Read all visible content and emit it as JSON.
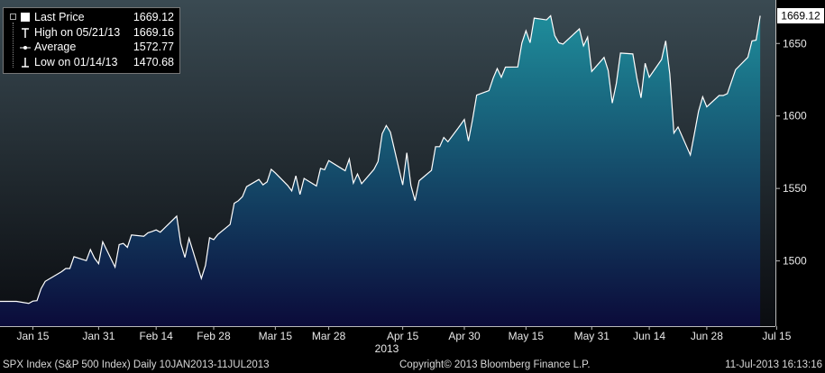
{
  "legend": {
    "items": [
      {
        "label": "Last Price",
        "value": "1669.12",
        "icon": "filled-square-icon"
      },
      {
        "label": "High on 05/21/13",
        "value": "1669.16",
        "icon": "high-marker-icon"
      },
      {
        "label": "Average",
        "value": "1572.77",
        "icon": "average-line-icon"
      },
      {
        "label": "Low on 01/14/13",
        "value": "1470.68",
        "icon": "low-marker-icon"
      }
    ]
  },
  "footer": {
    "security": "SPX Index (S&P 500 Index)  Daily 10JAN2013-11JUL2013",
    "copyright": "Copyright© 2013 Bloomberg Finance L.P.",
    "timestamp": "11-Jul-2013 16:13:16"
  },
  "chart_data": {
    "type": "area",
    "ylim": [
      1455,
      1680
    ],
    "y_ticks": [
      "1500",
      "1550",
      "1600",
      "1650"
    ],
    "y_tick_values": [
      1500,
      1550,
      1600,
      1650
    ],
    "x_tick_labels": [
      "Jan 15",
      "Jan 31",
      "Feb 14",
      "Feb 28",
      "Mar 15",
      "Mar 28",
      "Apr 15",
      "Apr 30",
      "May 15",
      "May 31",
      "Jun 14",
      "Jun 28",
      "Jul 15"
    ],
    "x_tick_dates": [
      "2013-01-15",
      "2013-01-31",
      "2013-02-14",
      "2013-02-28",
      "2013-03-15",
      "2013-03-28",
      "2013-04-15",
      "2013-04-30",
      "2013-05-15",
      "2013-05-31",
      "2013-06-14",
      "2013-06-28",
      "2013-07-15"
    ],
    "year_label": "2013",
    "last_price_label": "1669.12",
    "last_price": 1669.12,
    "colors": {
      "fill_top": "#1e8a99",
      "fill_bottom": "#0b0b3a",
      "line": "#ffffff",
      "plot_bg_top": "#3a4a52",
      "plot_bg_bottom": "#0a0c10"
    },
    "series": [
      {
        "dates": [
          "2013-01-10",
          "2013-01-11",
          "2013-01-14",
          "2013-01-15",
          "2013-01-16",
          "2013-01-17",
          "2013-01-18",
          "2013-01-22",
          "2013-01-23",
          "2013-01-24",
          "2013-01-25",
          "2013-01-28",
          "2013-01-29",
          "2013-01-30",
          "2013-01-31",
          "2013-02-01",
          "2013-02-04",
          "2013-02-05",
          "2013-02-06",
          "2013-02-07",
          "2013-02-08",
          "2013-02-11",
          "2013-02-12",
          "2013-02-13",
          "2013-02-14",
          "2013-02-15",
          "2013-02-19",
          "2013-02-20",
          "2013-02-21",
          "2013-02-22",
          "2013-02-25",
          "2013-02-26",
          "2013-02-27",
          "2013-02-28",
          "2013-03-01",
          "2013-03-04",
          "2013-03-05",
          "2013-03-06",
          "2013-03-07",
          "2013-03-08",
          "2013-03-11",
          "2013-03-12",
          "2013-03-13",
          "2013-03-14",
          "2013-03-15",
          "2013-03-18",
          "2013-03-19",
          "2013-03-20",
          "2013-03-21",
          "2013-03-22",
          "2013-03-25",
          "2013-03-26",
          "2013-03-27",
          "2013-03-28",
          "2013-04-01",
          "2013-04-02",
          "2013-04-03",
          "2013-04-04",
          "2013-04-05",
          "2013-04-08",
          "2013-04-09",
          "2013-04-10",
          "2013-04-11",
          "2013-04-12",
          "2013-04-15",
          "2013-04-16",
          "2013-04-17",
          "2013-04-18",
          "2013-04-19",
          "2013-04-22",
          "2013-04-23",
          "2013-04-24",
          "2013-04-25",
          "2013-04-26",
          "2013-04-29",
          "2013-04-30",
          "2013-05-01",
          "2013-05-02",
          "2013-05-03",
          "2013-05-06",
          "2013-05-07",
          "2013-05-08",
          "2013-05-09",
          "2013-05-10",
          "2013-05-13",
          "2013-05-14",
          "2013-05-15",
          "2013-05-16",
          "2013-05-17",
          "2013-05-20",
          "2013-05-21",
          "2013-05-22",
          "2013-05-23",
          "2013-05-24",
          "2013-05-28",
          "2013-05-29",
          "2013-05-30",
          "2013-05-31",
          "2013-06-03",
          "2013-06-04",
          "2013-06-05",
          "2013-06-06",
          "2013-06-07",
          "2013-06-10",
          "2013-06-11",
          "2013-06-12",
          "2013-06-13",
          "2013-06-14",
          "2013-06-17",
          "2013-06-18",
          "2013-06-19",
          "2013-06-20",
          "2013-06-21",
          "2013-06-24",
          "2013-06-25",
          "2013-06-26",
          "2013-06-27",
          "2013-06-28",
          "2013-07-01",
          "2013-07-02",
          "2013-07-03",
          "2013-07-05",
          "2013-07-08",
          "2013-07-09",
          "2013-07-10",
          "2013-07-11"
        ],
        "values": [
          1472.1,
          1472.1,
          1470.7,
          1472.3,
          1472.6,
          1480.9,
          1485.9,
          1492.6,
          1494.8,
          1494.8,
          1502.9,
          1500.2,
          1507.8,
          1501.9,
          1498.1,
          1513.2,
          1495.7,
          1511.3,
          1512.1,
          1509.4,
          1517.9,
          1517.0,
          1519.4,
          1520.3,
          1521.4,
          1519.8,
          1530.9,
          1511.9,
          1502.4,
          1515.6,
          1487.9,
          1496.9,
          1515.99,
          1514.7,
          1518.2,
          1525.2,
          1539.8,
          1541.5,
          1544.3,
          1551.2,
          1556.2,
          1552.5,
          1554.5,
          1563.2,
          1560.7,
          1552.1,
          1548.3,
          1558.7,
          1545.8,
          1556.9,
          1551.7,
          1563.8,
          1562.9,
          1569.2,
          1562.2,
          1570.3,
          1553.7,
          1559.98,
          1553.3,
          1563.1,
          1568.6,
          1587.7,
          1593.4,
          1588.9,
          1552.4,
          1574.6,
          1552.0,
          1541.6,
          1555.3,
          1562.5,
          1578.8,
          1578.8,
          1585.2,
          1582.2,
          1593.6,
          1597.6,
          1582.7,
          1597.6,
          1614.4,
          1617.5,
          1625.96,
          1632.7,
          1626.7,
          1633.7,
          1633.8,
          1650.3,
          1658.8,
          1650.5,
          1667.5,
          1666.3,
          1669.16,
          1655.4,
          1650.5,
          1649.6,
          1660.1,
          1648.4,
          1654.4,
          1630.7,
          1640.4,
          1631.4,
          1608.9,
          1622.6,
          1643.4,
          1642.8,
          1626.1,
          1612.5,
          1636.4,
          1626.7,
          1639.0,
          1651.8,
          1628.9,
          1588.2,
          1592.4,
          1573.1,
          1588.0,
          1603.3,
          1613.2,
          1606.3,
          1614.1,
          1614.1,
          1615.4,
          1631.9,
          1640.5,
          1651.8,
          1652.3,
          1669.12
        ]
      }
    ]
  }
}
